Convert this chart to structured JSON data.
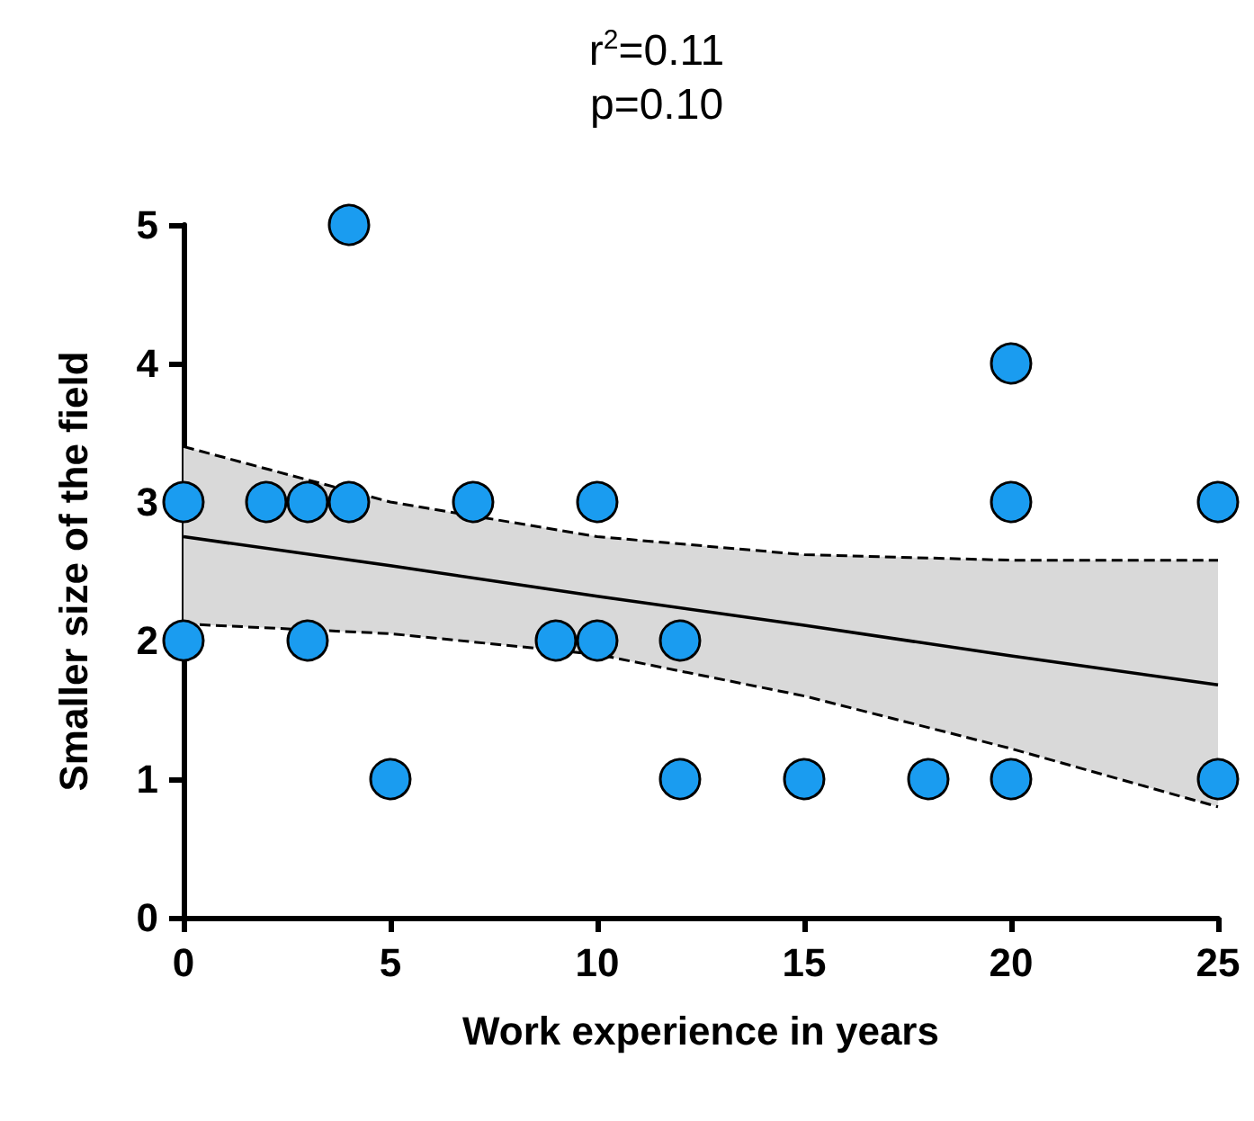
{
  "chart_data": {
    "type": "scatter",
    "title": "r$^{2}$=0.11",
    "subtitle": "p=0.10",
    "xlabel": "Work experience in years",
    "ylabel": "Smaller size of the field",
    "xlim": [
      0,
      25
    ],
    "xticks": [
      0,
      5,
      10,
      15,
      20,
      25
    ],
    "ylim": [
      0,
      5
    ],
    "yticks": [
      0,
      1,
      2,
      3,
      4,
      5
    ],
    "series": [
      {
        "type": "line",
        "color": "#000000",
        "marker": "none",
        "line_style": "solid",
        "x": [
          0,
          5,
          10,
          15,
          20,
          25
        ],
        "values": [
          2.75,
          2.54,
          2.32,
          2.11,
          1.89,
          1.68
        ],
        "lower": [
          2.12,
          2.05,
          1.9,
          1.6,
          1.22,
          0.8
        ],
        "upper": [
          3.4,
          3.0,
          2.75,
          2.62,
          2.58,
          2.58
        ]
      },
      {
        "type": "line",
        "color": "#000000",
        "marker": "none",
        "line_style": "dashed",
        "x": [
          0,
          5,
          10,
          15,
          20,
          25
        ],
        "values": [
          2.12,
          2.05,
          1.9,
          1.6,
          1.22,
          0.8
        ]
      },
      {
        "type": "line",
        "color": "#000000",
        "marker": "none",
        "line_style": "dashed",
        "x": [
          0,
          5,
          10,
          15,
          20,
          25
        ],
        "values": [
          3.4,
          3.0,
          2.75,
          2.62,
          2.58,
          2.58
        ]
      },
      {
        "color": "#1a9cf0",
        "marker": "circle",
        "x": [
          0,
          0,
          2,
          3,
          3,
          4,
          4,
          5,
          7,
          9,
          10,
          10,
          12,
          12,
          15,
          18,
          20,
          20,
          20,
          25,
          25
        ],
        "values": [
          3,
          2,
          3,
          3,
          2,
          3,
          5,
          1,
          3,
          2,
          3,
          2,
          2,
          1,
          1,
          1,
          4,
          3,
          1,
          3,
          1
        ]
      }
    ]
  }
}
